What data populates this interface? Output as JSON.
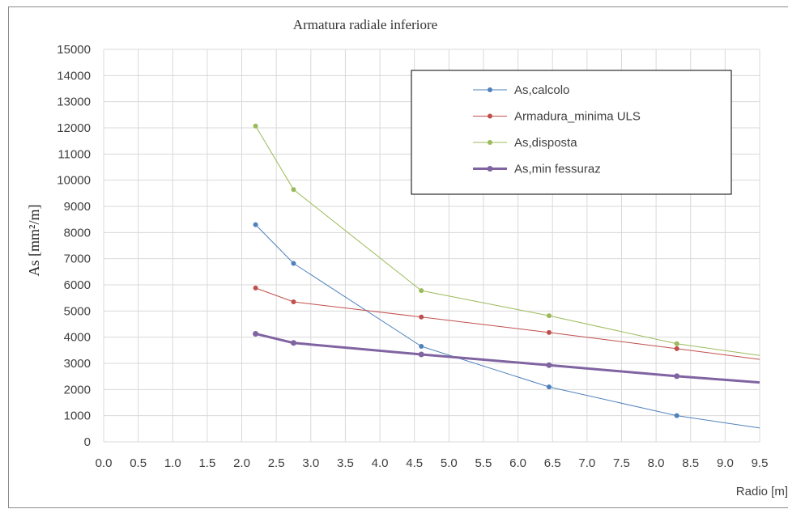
{
  "chart_data": {
    "type": "line",
    "title": "Armatura radiale  inferiore",
    "xlabel": "Radio  [m]",
    "ylabel": "As [mm²/m]",
    "xlim": [
      0,
      9.5
    ],
    "ylim": [
      0,
      15000
    ],
    "x_ticks": [
      "0.0",
      "0.5",
      "1.0",
      "1.5",
      "2.0",
      "2.5",
      "3.0",
      "3.5",
      "4.0",
      "4.5",
      "5.0",
      "5.5",
      "6.0",
      "6.5",
      "7.0",
      "7.5",
      "8.0",
      "8.5",
      "9.0",
      "9.5"
    ],
    "y_ticks": [
      "0",
      "1000",
      "2000",
      "3000",
      "4000",
      "5000",
      "6000",
      "7000",
      "8000",
      "9000",
      "10000",
      "11000",
      "12000",
      "13000",
      "14000",
      "15000"
    ],
    "grid": true,
    "legend_position": "top-right",
    "series": [
      {
        "name": "As,calcolo",
        "color": "#4f81bd",
        "width": 1,
        "x": [
          2.2,
          2.75,
          4.6,
          6.45,
          8.3,
          9.5
        ],
        "y": [
          8300,
          6820,
          3650,
          2100,
          1000,
          530
        ],
        "markers": [
          true,
          true,
          true,
          true,
          true,
          false
        ]
      },
      {
        "name": "Armadura_minima ULS",
        "color": "#c0504d",
        "width": 1,
        "x": [
          2.2,
          2.75,
          4.6,
          6.45,
          8.3,
          9.5
        ],
        "y": [
          5880,
          5350,
          4770,
          4180,
          3560,
          3150
        ],
        "markers": [
          true,
          true,
          true,
          true,
          true,
          false
        ]
      },
      {
        "name": "As,disposta",
        "color": "#9bbb59",
        "width": 1,
        "x": [
          2.2,
          2.75,
          4.6,
          6.45,
          8.3,
          9.5
        ],
        "y": [
          12070,
          9640,
          5780,
          4820,
          3750,
          3300
        ],
        "markers": [
          true,
          true,
          true,
          true,
          true,
          false
        ]
      },
      {
        "name": "As,min fessuraz",
        "color": "#8064a2",
        "width": 3,
        "x": [
          2.2,
          2.75,
          4.6,
          6.45,
          8.3,
          9.5
        ],
        "y": [
          4130,
          3780,
          3340,
          2930,
          2510,
          2270
        ],
        "markers": [
          true,
          true,
          true,
          true,
          true,
          false
        ]
      }
    ]
  }
}
